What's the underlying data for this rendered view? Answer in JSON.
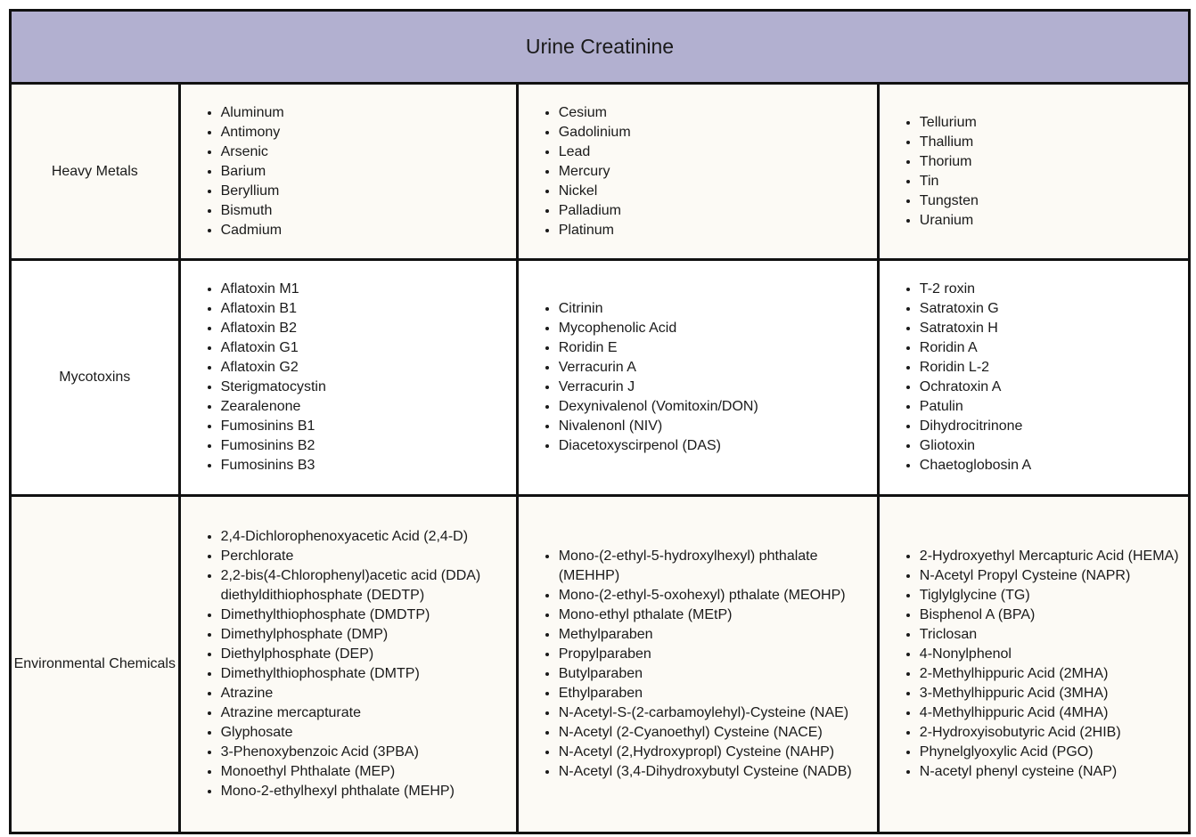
{
  "title": "Urine Creatinine",
  "colors": {
    "header_bg": "#b2b0d0",
    "cell_bg": "#fcfaf5",
    "border": "#111111"
  },
  "rows": [
    {
      "category": "Heavy Metals",
      "columns": [
        [
          "Aluminum",
          "Antimony",
          "Arsenic",
          "Barium",
          "Beryllium",
          "Bismuth",
          "Cadmium"
        ],
        [
          "Cesium",
          "Gadolinium",
          "Lead",
          "Mercury",
          "Nickel",
          "Palladium",
          "Platinum"
        ],
        [
          "Tellurium",
          "Thallium",
          "Thorium",
          "Tin",
          "Tungsten",
          "Uranium"
        ]
      ]
    },
    {
      "category": "Mycotoxins",
      "columns": [
        [
          "Aflatoxin M1",
          "Aflatoxin B1",
          "Aflatoxin B2",
          "Aflatoxin G1",
          "Aflatoxin G2",
          "Sterigmatocystin",
          "Zearalenone",
          "Fumosinins B1",
          "Fumosinins B2",
          "Fumosinins B3"
        ],
        [
          "Citrinin",
          "Mycophenolic Acid",
          "Roridin E",
          "Verracurin A",
          "Verracurin J",
          "Dexynivalenol (Vomitoxin/DON)",
          "Nivalenonl (NIV)",
          "Diacetoxyscirpenol (DAS)"
        ],
        [
          "T-2 roxin",
          "Satratoxin G",
          "Satratoxin H",
          "Roridin A",
          "Roridin L-2",
          "Ochratoxin A",
          "Patulin",
          "Dihydrocitrinone",
          "Gliotoxin",
          "Chaetoglobosin A"
        ]
      ]
    },
    {
      "category": "Environmental Chemicals",
      "columns": [
        [
          "2,4-Dichlorophenoxyacetic Acid (2,4-D)",
          "Perchlorate",
          "2,2-bis(4-Chlorophenyl)acetic acid (DDA) diethyldithiophosphate (DEDTP)",
          "Dimethylthiophosphate (DMDTP)",
          "Dimethylphosphate (DMP)",
          "Diethylphosphate (DEP)",
          "Dimethylthiophosphate (DMTP)",
          "Atrazine",
          "Atrazine mercapturate",
          "Glyphosate",
          "3-Phenoxybenzoic Acid (3PBA)",
          "Monoethyl Phthalate (MEP)",
          "Mono-2-ethylhexyl phthalate (MEHP)"
        ],
        [
          "Mono-(2-ethyl-5-hydroxylhexyl) phthalate (MEHHP)",
          "Mono-(2-ethyl-5-oxohexyl) pthalate (MEOHP)",
          "Mono-ethyl pthalate (MEtP)",
          "Methylparaben",
          "Propylparaben",
          "Butylparaben",
          "Ethylparaben",
          "N-Acetyl-S-(2-carbamoylehyl)-Cysteine (NAE)",
          "N-Acetyl (2-Cyanoethyl) Cysteine (NACE)",
          "N-Acetyl (2,Hydroxypropl) Cysteine (NAHP)",
          "N-Acetyl (3,4-Dihydroxybutyl Cysteine (NADB)"
        ],
        [
          "2-Hydroxyethyl Mercapturic Acid (HEMA)",
          "N-Acetyl Propyl Cysteine (NAPR)",
          "Tiglylglycine (TG)",
          "Bisphenol A (BPA)",
          "Triclosan",
          "4-Nonylphenol",
          "2-Methylhippuric Acid (2MHA)",
          "3-Methylhippuric Acid (3MHA)",
          "4-Methylhippuric Acid (4MHA)",
          "2-Hydroxyisobutyric Acid (2HIB)",
          "Phynelglyoxylic Acid (PGO)",
          "N-acetyl phenyl cysteine (NAP)"
        ]
      ]
    }
  ]
}
